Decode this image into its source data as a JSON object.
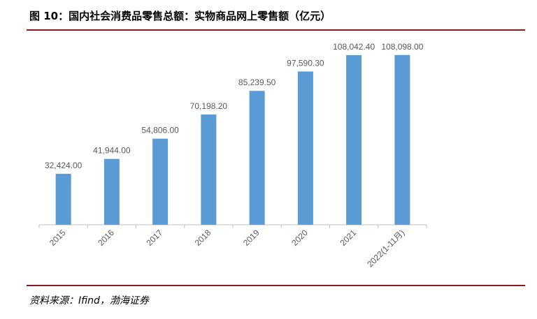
{
  "figure": {
    "title": "图 10：国内社会消费品零售总额：实物商品网上零售额（亿元）",
    "source": "资料来源：Ifind，渤海证券"
  },
  "chart_data": {
    "type": "bar",
    "title": "图 10：国内社会消费品零售总额：实物商品网上零售额（亿元）",
    "categories": [
      "2015",
      "2016",
      "2017",
      "2018",
      "2019",
      "2020",
      "2021",
      "2022(1-11月)"
    ],
    "values": [
      32424.0,
      41944.0,
      54806.0,
      70198.2,
      85239.5,
      97590.3,
      108042.4,
      108098.0
    ],
    "data_labels": [
      "32,424.00",
      "41,944.00",
      "54,806.00",
      "70,198.20",
      "85,239.50",
      "97,590.30",
      "108,042.40",
      "108,098.00"
    ],
    "ylim": [
      0,
      120000
    ],
    "grid": false,
    "legend": "none",
    "bar_color": "#5b9bd5",
    "label_color": "#595959",
    "axis_color": "#bfbfbf"
  }
}
